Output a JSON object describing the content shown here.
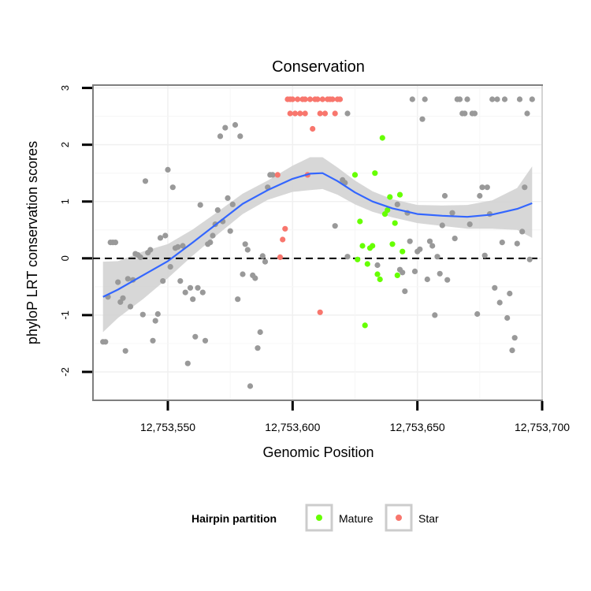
{
  "chart_data": {
    "type": "scatter",
    "title": "Conservation",
    "xlabel": "Genomic Position",
    "ylabel": "phyloP LRT conservation scores",
    "xlim": [
      12753520,
      12753700
    ],
    "ylim": [
      -2.5,
      3.05
    ],
    "x_ticks": [
      12753550,
      12753600,
      12753650,
      12753700
    ],
    "x_tick_labels": [
      "12,753,550",
      "12,753,600",
      "12,753,650",
      "12,753,700"
    ],
    "y_ticks": [
      -2,
      -1,
      0,
      1,
      2,
      3
    ],
    "y_tick_labels": [
      "-2",
      "-1",
      "0",
      "1",
      "2",
      "3"
    ],
    "reference_line": {
      "y": 0,
      "style": "dashed"
    },
    "grid": true,
    "legend": {
      "title": "Hairpin partition",
      "position": "bottom",
      "entries": [
        {
          "label": "Mature",
          "color": "#66ff00"
        },
        {
          "label": "Star",
          "color": "#f8766d"
        }
      ]
    },
    "colors": {
      "other": "#999999",
      "Mature": "#66ff00",
      "Star": "#f8766d",
      "smooth": "#3366ff",
      "ribbon": "#d3d3d3"
    },
    "series": [
      {
        "name": "Other",
        "points": [
          [
            12753524,
            -1.47
          ],
          [
            12753525,
            -1.47
          ],
          [
            12753526,
            -0.68
          ],
          [
            12753527,
            0.28
          ],
          [
            12753528,
            0.28
          ],
          [
            12753529,
            0.28
          ],
          [
            12753530,
            -0.42
          ],
          [
            12753531,
            -0.77
          ],
          [
            12753532,
            -0.7
          ],
          [
            12753533,
            -1.63
          ],
          [
            12753534,
            -0.36
          ],
          [
            12753535,
            -0.85
          ],
          [
            12753536,
            -0.38
          ],
          [
            12753537,
            0.08
          ],
          [
            12753538,
            0.06
          ],
          [
            12753539,
            0.02
          ],
          [
            12753540,
            -0.99
          ],
          [
            12753541,
            1.36
          ],
          [
            12753542,
            0.1
          ],
          [
            12753543,
            0.15
          ],
          [
            12753544,
            -1.45
          ],
          [
            12753545,
            -1.1
          ],
          [
            12753546,
            -0.98
          ],
          [
            12753547,
            0.36
          ],
          [
            12753548,
            -0.4
          ],
          [
            12753549,
            0.4
          ],
          [
            12753550,
            1.56
          ],
          [
            12753551,
            -0.15
          ],
          [
            12753552,
            1.25
          ],
          [
            12753553,
            0.18
          ],
          [
            12753554,
            0.2
          ],
          [
            12753555,
            -0.4
          ],
          [
            12753556,
            0.22
          ],
          [
            12753557,
            -0.6
          ],
          [
            12753558,
            -1.85
          ],
          [
            12753559,
            -0.52
          ],
          [
            12753560,
            -0.72
          ],
          [
            12753561,
            -1.38
          ],
          [
            12753562,
            -0.52
          ],
          [
            12753563,
            0.94
          ],
          [
            12753564,
            -0.6
          ],
          [
            12753565,
            -1.45
          ],
          [
            12753566,
            0.25
          ],
          [
            12753567,
            0.28
          ],
          [
            12753568,
            0.4
          ],
          [
            12753569,
            0.6
          ],
          [
            12753570,
            0.85
          ],
          [
            12753571,
            2.15
          ],
          [
            12753572,
            0.65
          ],
          [
            12753573,
            2.3
          ],
          [
            12753574,
            1.06
          ],
          [
            12753575,
            0.48
          ],
          [
            12753576,
            0.95
          ],
          [
            12753577,
            2.35
          ],
          [
            12753578,
            -0.72
          ],
          [
            12753579,
            2.15
          ],
          [
            12753580,
            -0.28
          ],
          [
            12753581,
            0.25
          ],
          [
            12753582,
            0.15
          ],
          [
            12753583,
            -2.25
          ],
          [
            12753584,
            -0.3
          ],
          [
            12753585,
            -0.35
          ],
          [
            12753586,
            -1.58
          ],
          [
            12753587,
            -1.3
          ],
          [
            12753588,
            0.04
          ],
          [
            12753589,
            -0.06
          ],
          [
            12753590,
            1.25
          ],
          [
            12753591,
            1.47
          ],
          [
            12753592,
            1.47
          ],
          [
            12753622,
            2.55
          ],
          [
            12753617,
            0.57
          ],
          [
            12753620,
            1.38
          ],
          [
            12753621,
            1.33
          ],
          [
            12753622,
            0.03
          ],
          [
            12753634,
            -0.12
          ],
          [
            12753642,
            0.95
          ],
          [
            12753643,
            -0.2
          ],
          [
            12753644,
            -0.25
          ],
          [
            12753645,
            -0.58
          ],
          [
            12753646,
            0.8
          ],
          [
            12753647,
            0.3
          ],
          [
            12753648,
            2.8
          ],
          [
            12753649,
            -0.23
          ],
          [
            12753650,
            0.12
          ],
          [
            12753651,
            0.16
          ],
          [
            12753652,
            2.45
          ],
          [
            12753653,
            2.8
          ],
          [
            12753654,
            -0.37
          ],
          [
            12753655,
            0.3
          ],
          [
            12753656,
            0.22
          ],
          [
            12753657,
            -1.0
          ],
          [
            12753658,
            0.03
          ],
          [
            12753659,
            -0.27
          ],
          [
            12753660,
            0.58
          ],
          [
            12753661,
            1.1
          ],
          [
            12753662,
            -0.38
          ],
          [
            12753664,
            0.8
          ],
          [
            12753665,
            0.35
          ],
          [
            12753666,
            2.8
          ],
          [
            12753667,
            2.8
          ],
          [
            12753668,
            2.55
          ],
          [
            12753669,
            2.55
          ],
          [
            12753670,
            2.8
          ],
          [
            12753671,
            0.6
          ],
          [
            12753672,
            2.55
          ],
          [
            12753673,
            2.55
          ],
          [
            12753674,
            -0.98
          ],
          [
            12753675,
            1.1
          ],
          [
            12753676,
            1.25
          ],
          [
            12753677,
            0.05
          ],
          [
            12753678,
            1.25
          ],
          [
            12753679,
            0.78
          ],
          [
            12753680,
            2.8
          ],
          [
            12753681,
            -0.52
          ],
          [
            12753682,
            2.8
          ],
          [
            12753683,
            -0.78
          ],
          [
            12753684,
            0.28
          ],
          [
            12753685,
            2.8
          ],
          [
            12753686,
            -1.05
          ],
          [
            12753687,
            -0.62
          ],
          [
            12753688,
            -1.62
          ],
          [
            12753689,
            -1.4
          ],
          [
            12753690,
            0.26
          ],
          [
            12753691,
            2.8
          ],
          [
            12753692,
            0.47
          ],
          [
            12753693,
            1.25
          ],
          [
            12753694,
            2.55
          ],
          [
            12753695,
            -0.02
          ],
          [
            12753696,
            2.8
          ]
        ]
      },
      {
        "name": "Mature",
        "points": [
          [
            12753625,
            1.47
          ],
          [
            12753626,
            -0.02
          ],
          [
            12753627,
            0.65
          ],
          [
            12753628,
            0.22
          ],
          [
            12753629,
            -1.18
          ],
          [
            12753630,
            -0.1
          ],
          [
            12753631,
            0.18
          ],
          [
            12753632,
            0.22
          ],
          [
            12753633,
            1.5
          ],
          [
            12753634,
            -0.28
          ],
          [
            12753635,
            -0.37
          ],
          [
            12753636,
            2.12
          ],
          [
            12753637,
            0.78
          ],
          [
            12753638,
            0.85
          ],
          [
            12753639,
            1.08
          ],
          [
            12753640,
            0.25
          ],
          [
            12753641,
            0.62
          ],
          [
            12753642,
            -0.3
          ],
          [
            12753643,
            1.12
          ],
          [
            12753644,
            0.12
          ]
        ]
      },
      {
        "name": "Star",
        "points": [
          [
            12753594,
            1.47
          ],
          [
            12753595,
            0.02
          ],
          [
            12753596,
            0.33
          ],
          [
            12753597,
            0.52
          ],
          [
            12753598,
            2.8
          ],
          [
            12753599,
            2.8
          ],
          [
            12753599,
            2.55
          ],
          [
            12753600,
            2.8
          ],
          [
            12753601,
            2.55
          ],
          [
            12753602,
            2.8
          ],
          [
            12753603,
            2.55
          ],
          [
            12753604,
            2.8
          ],
          [
            12753605,
            2.8
          ],
          [
            12753605,
            2.55
          ],
          [
            12753606,
            1.47
          ],
          [
            12753607,
            2.8
          ],
          [
            12753608,
            2.28
          ],
          [
            12753609,
            2.8
          ],
          [
            12753610,
            2.8
          ],
          [
            12753611,
            -0.95
          ],
          [
            12753611,
            2.55
          ],
          [
            12753612,
            2.8
          ],
          [
            12753613,
            2.55
          ],
          [
            12753614,
            2.8
          ],
          [
            12753615,
            2.8
          ],
          [
            12753616,
            2.8
          ],
          [
            12753617,
            2.55
          ],
          [
            12753618,
            2.8
          ],
          [
            12753619,
            2.8
          ]
        ]
      }
    ],
    "smooth": {
      "x": [
        12753524,
        12753530,
        12753540,
        12753550,
        12753560,
        12753570,
        12753580,
        12753590,
        12753600,
        12753607,
        12753612,
        12753618,
        12753625,
        12753632,
        12753640,
        12753650,
        12753660,
        12753670,
        12753680,
        12753690,
        12753696
      ],
      "y": [
        -0.68,
        -0.55,
        -0.3,
        -0.05,
        0.28,
        0.62,
        0.96,
        1.2,
        1.4,
        1.49,
        1.5,
        1.36,
        1.16,
        1.0,
        0.88,
        0.78,
        0.75,
        0.73,
        0.77,
        0.87,
        0.97
      ],
      "lower": [
        -1.3,
        -1.05,
        -0.72,
        -0.35,
        0.05,
        0.42,
        0.78,
        1.03,
        1.17,
        1.2,
        1.22,
        1.12,
        0.95,
        0.82,
        0.72,
        0.62,
        0.57,
        0.52,
        0.52,
        0.5,
        0.36
      ],
      "upper": [
        -0.06,
        -0.05,
        0.12,
        0.25,
        0.51,
        0.82,
        1.14,
        1.37,
        1.63,
        1.78,
        1.78,
        1.6,
        1.37,
        1.18,
        1.04,
        0.94,
        0.93,
        0.94,
        1.02,
        1.24,
        1.62
      ]
    }
  }
}
